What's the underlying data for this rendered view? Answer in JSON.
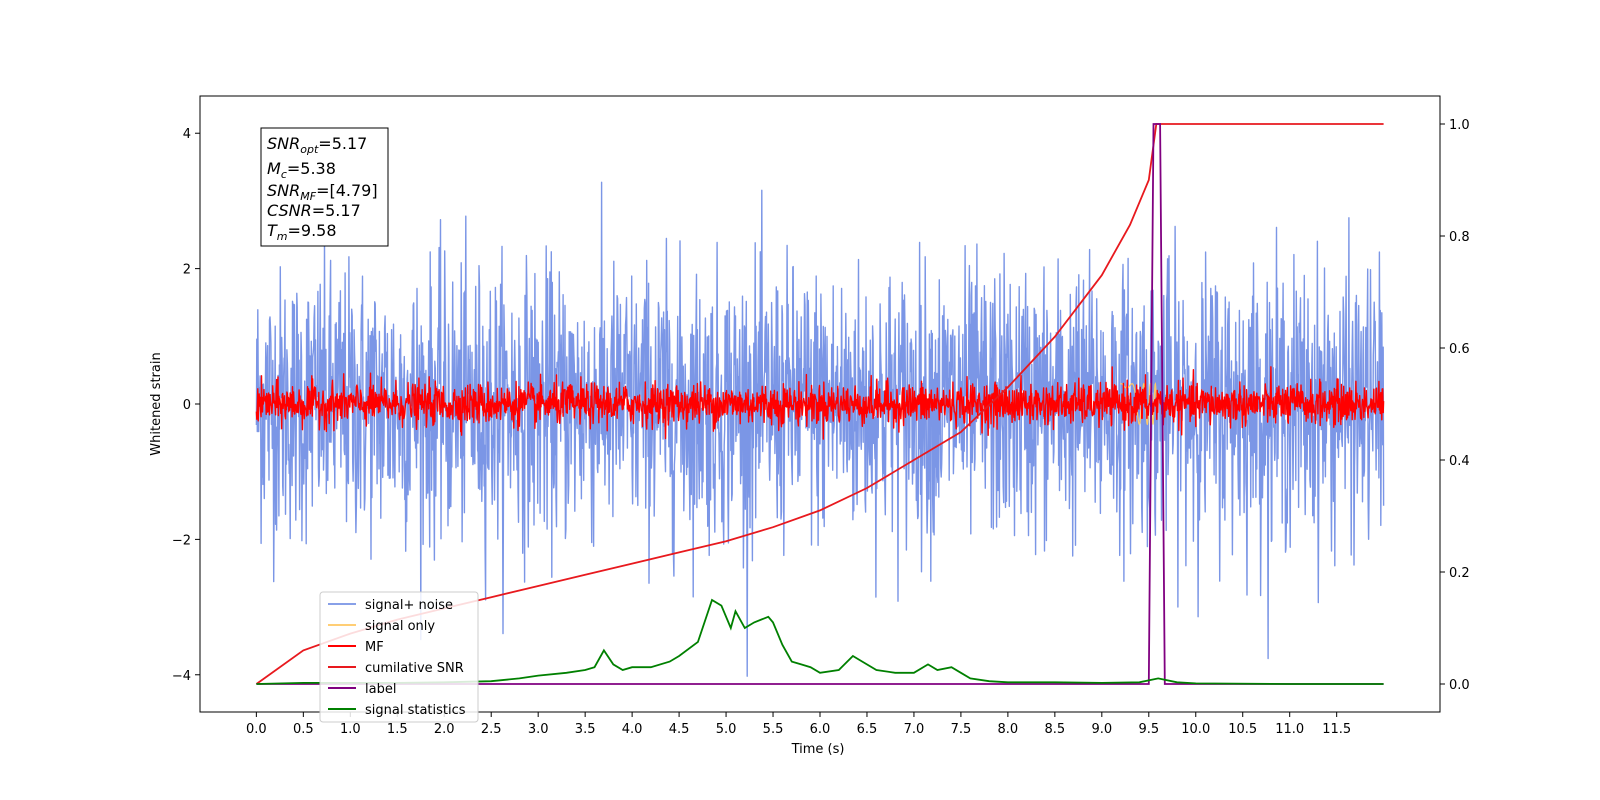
{
  "chart_data": {
    "type": "line",
    "xlabel": "Time (s)",
    "ylabel": "Whitened strain",
    "xlim": [
      -0.6,
      12.6
    ],
    "ylim": [
      -4.55,
      4.55
    ],
    "y2lim": [
      -0.05,
      1.05
    ],
    "x_ticks": [
      "0.0",
      "0.5",
      "1.0",
      "1.5",
      "2.0",
      "2.5",
      "3.0",
      "3.5",
      "4.0",
      "4.5",
      "5.0",
      "5.5",
      "6.0",
      "6.5",
      "7.0",
      "7.5",
      "8.0",
      "8.5",
      "9.0",
      "9.5",
      "10.0",
      "10.5",
      "11.0",
      "11.5"
    ],
    "y_ticks": [
      "4",
      "2",
      "0",
      "−2",
      "−4"
    ],
    "y2_ticks": [
      "1.0",
      "0.8",
      "0.6",
      "0.4",
      "0.2",
      "0.0"
    ],
    "legend_position": "lower-left",
    "info_box": {
      "snr_opt": {
        "sym": "SNR",
        "sub": "opt",
        "val": "=5.17"
      },
      "mc": {
        "sym": "M",
        "sub": "c",
        "val": "=5.38"
      },
      "snr_mf": {
        "sym": "SNR",
        "sub": "MF",
        "val": "=[4.79]"
      },
      "csnr": {
        "sym": "CSNR",
        "sub": "",
        "val": "=5.17"
      },
      "tm": {
        "sym": "T",
        "sub": "m",
        "val": "=9.58"
      }
    },
    "series": [
      {
        "name": "signal+ noise",
        "color": "#7b96e6",
        "axis": "left",
        "noise_amplitude": 2.2,
        "x_range": [
          0.0,
          12.0
        ]
      },
      {
        "name": "signal only",
        "color": "#ffc966",
        "axis": "left",
        "values_note_x": [
          9.2,
          9.58
        ],
        "amplitude": 0.3
      },
      {
        "name": "MF",
        "color": "#ff0000",
        "axis": "left",
        "noise_amplitude": 0.45,
        "x_range": [
          0.0,
          12.0
        ]
      },
      {
        "name": "cumilative SNR",
        "color": "#e8191e",
        "axis": "right",
        "x": [
          0.0,
          0.5,
          1.0,
          1.5,
          2.0,
          2.5,
          3.0,
          3.5,
          4.0,
          4.5,
          5.0,
          5.5,
          6.0,
          6.5,
          7.0,
          7.5,
          8.0,
          8.5,
          9.0,
          9.3,
          9.5,
          9.58,
          9.6,
          12.0
        ],
        "y": [
          0.0,
          0.06,
          0.09,
          0.115,
          0.135,
          0.155,
          0.175,
          0.195,
          0.215,
          0.235,
          0.255,
          0.28,
          0.31,
          0.35,
          0.4,
          0.45,
          0.53,
          0.62,
          0.73,
          0.82,
          0.9,
          1.0,
          1.0,
          1.0
        ]
      },
      {
        "name": "label",
        "color": "#800080",
        "axis": "right",
        "x": [
          0.0,
          9.5,
          9.55,
          9.62,
          9.67,
          12.0
        ],
        "y": [
          0.0,
          0.0,
          1.0,
          1.0,
          0.0,
          0.0
        ]
      },
      {
        "name": "signal statistics",
        "color": "#008000",
        "axis": "right",
        "x": [
          0.0,
          0.5,
          1.0,
          1.5,
          2.0,
          2.5,
          2.8,
          3.0,
          3.3,
          3.5,
          3.6,
          3.7,
          3.8,
          3.9,
          4.0,
          4.2,
          4.4,
          4.5,
          4.7,
          4.85,
          4.95,
          5.05,
          5.1,
          5.2,
          5.3,
          5.45,
          5.5,
          5.6,
          5.7,
          5.8,
          5.9,
          6.0,
          6.2,
          6.35,
          6.45,
          6.6,
          6.8,
          7.0,
          7.15,
          7.25,
          7.4,
          7.5,
          7.6,
          7.8,
          8.0,
          8.5,
          9.0,
          9.4,
          9.6,
          9.8,
          10.0,
          11.0,
          12.0
        ],
        "y": [
          0.0,
          0.002,
          0.002,
          0.002,
          0.003,
          0.005,
          0.01,
          0.015,
          0.02,
          0.025,
          0.03,
          0.06,
          0.035,
          0.025,
          0.03,
          0.03,
          0.04,
          0.05,
          0.075,
          0.15,
          0.14,
          0.1,
          0.13,
          0.1,
          0.11,
          0.12,
          0.11,
          0.07,
          0.04,
          0.035,
          0.03,
          0.02,
          0.025,
          0.05,
          0.04,
          0.025,
          0.02,
          0.02,
          0.035,
          0.025,
          0.03,
          0.02,
          0.01,
          0.005,
          0.003,
          0.003,
          0.002,
          0.003,
          0.01,
          0.003,
          0.001,
          0.0,
          0.0
        ]
      }
    ]
  }
}
